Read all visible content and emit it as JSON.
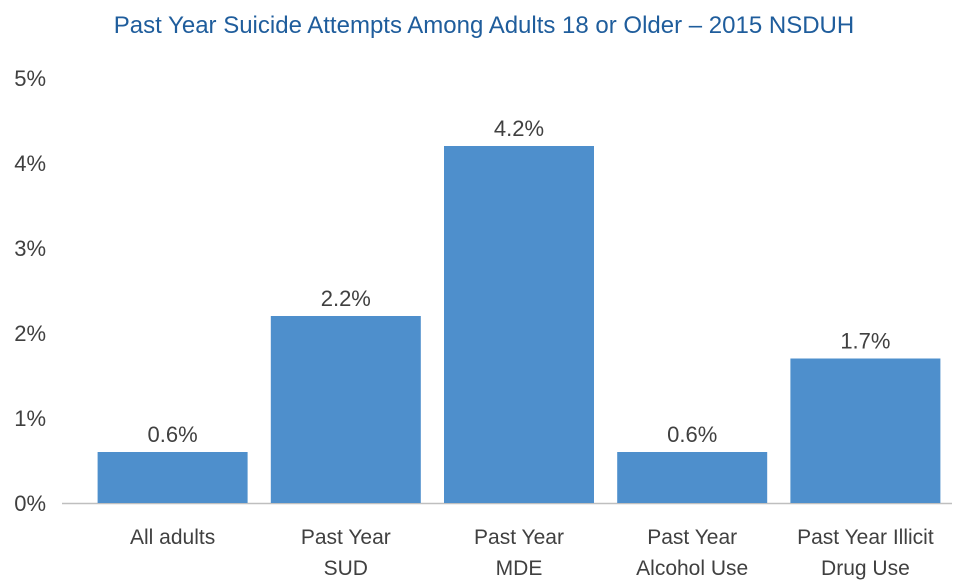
{
  "chart_data": {
    "type": "bar",
    "title": "Past Year Suicide Attempts Among Adults 18 or Older – 2015 NSDUH",
    "xlabel": "",
    "ylabel": "",
    "ylim": [
      0,
      5
    ],
    "y_ticks": [
      "0%",
      "1%",
      "2%",
      "3%",
      "4%",
      "5%"
    ],
    "categories": [
      [
        "All adults"
      ],
      [
        "Past Year",
        "SUD"
      ],
      [
        "Past Year",
        "MDE"
      ],
      [
        "Past Year",
        "Alcohol Use"
      ],
      [
        "Past Year Illicit",
        "Drug Use"
      ]
    ],
    "values": [
      0.6,
      2.2,
      4.2,
      0.6,
      1.7
    ],
    "data_labels": [
      "0.6%",
      "2.2%",
      "4.2%",
      "0.6%",
      "1.7%"
    ],
    "grid": false,
    "legend": "none",
    "bar_color": "#4e8fcc",
    "axis_color": "#bfbfbf",
    "title_color": "#1f5d9c"
  }
}
